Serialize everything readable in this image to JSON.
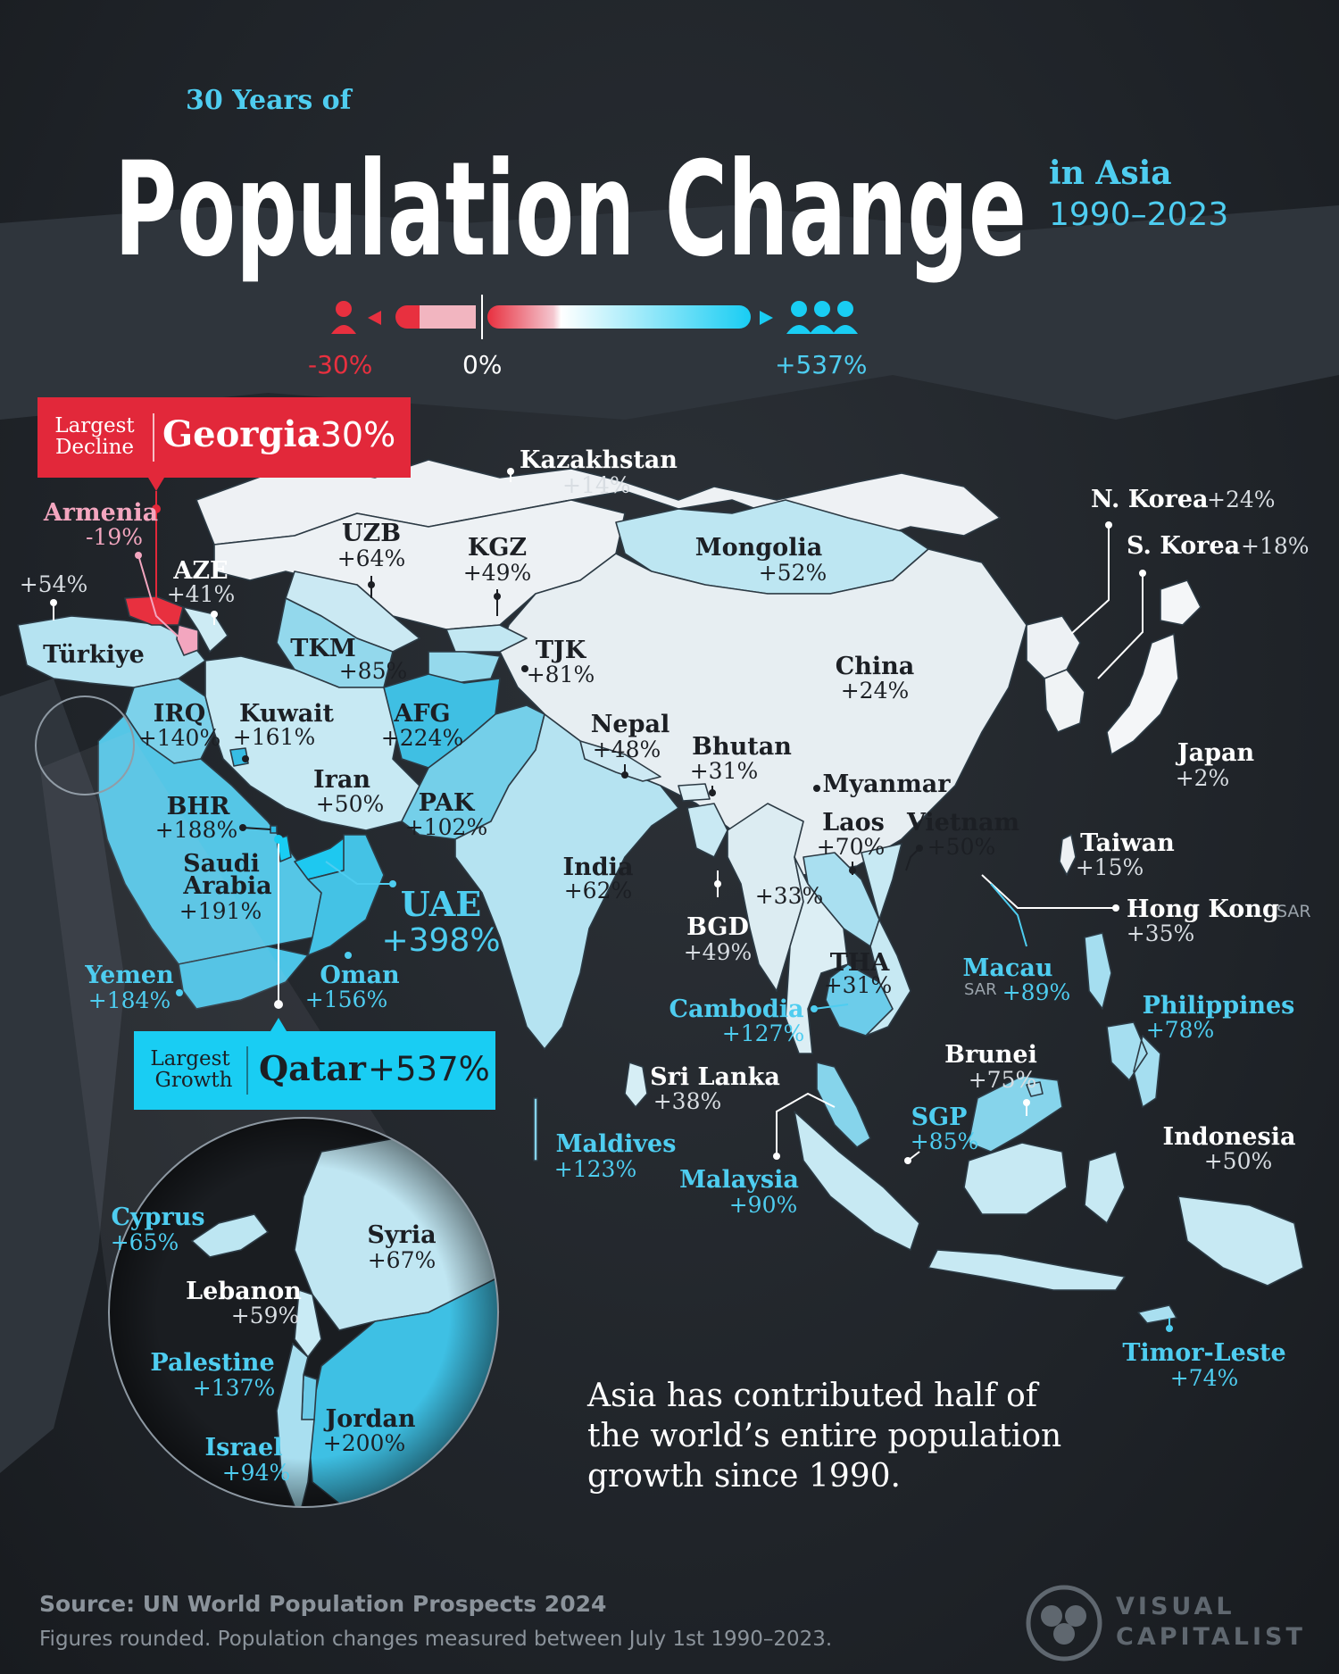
{
  "header": {
    "kicker": "30 Years of",
    "title": "Population Change",
    "region": "in Asia",
    "years": "1990–2023"
  },
  "legend": {
    "min_label": "-30%",
    "mid_label": "0%",
    "max_label": "+537%",
    "colors": {
      "decline": "#e8303f",
      "zero": "#ffffff",
      "growth": "#19cdf3"
    }
  },
  "callouts": {
    "decline": {
      "tag_line1": "Largest",
      "tag_line2": "Decline",
      "country": "Georgia",
      "value": "-30%"
    },
    "growth": {
      "tag_line1": "Largest",
      "tag_line2": "Growth",
      "country": "Qatar",
      "value": "+537%"
    }
  },
  "countries": {
    "kazakhstan": {
      "name": "Kazakhstan",
      "value": "+14%"
    },
    "mongolia": {
      "name": "Mongolia",
      "value": "+52%"
    },
    "uzb": {
      "name": "UZB",
      "value": "+64%"
    },
    "kgz": {
      "name": "KGZ",
      "value": "+49%"
    },
    "armenia": {
      "name": "Armenia",
      "value": "-19%"
    },
    "aze": {
      "name": "AZE",
      "value": "+41%"
    },
    "turkiye": {
      "name": "Türkiye",
      "value": "+54%"
    },
    "tkm": {
      "name": "TKM",
      "value": "+85%"
    },
    "tjk": {
      "name": "TJK",
      "value": "+81%"
    },
    "china": {
      "name": "China",
      "value": "+24%"
    },
    "n_korea": {
      "name": "N. Korea",
      "value": "+24%"
    },
    "s_korea": {
      "name": "S. Korea",
      "value": "+18%"
    },
    "japan": {
      "name": "Japan",
      "value": "+2%"
    },
    "irq": {
      "name": "IRQ",
      "value": "+140%"
    },
    "kuwait": {
      "name": "Kuwait",
      "value": "+161%"
    },
    "afg": {
      "name": "AFG",
      "value": "+224%"
    },
    "nepal": {
      "name": "Nepal",
      "value": "+48%"
    },
    "bhutan": {
      "name": "Bhutan",
      "value": "+31%"
    },
    "myanmar": {
      "name": "Myanmar",
      "value": "+33%"
    },
    "iran": {
      "name": "Iran",
      "value": "+50%"
    },
    "pak": {
      "name": "PAK",
      "value": "+102%"
    },
    "bhr": {
      "name": "BHR",
      "value": "+188%"
    },
    "saudi": {
      "name_line1": "Saudi",
      "name_line2": "Arabia",
      "value": "+191%"
    },
    "uae": {
      "name": "UAE",
      "value": "+398%"
    },
    "india": {
      "name": "India",
      "value": "+62%"
    },
    "bgd": {
      "name": "BGD",
      "value": "+49%"
    },
    "laos": {
      "name": "Laos",
      "value": "+70%"
    },
    "vietnam": {
      "name": "Vietnam",
      "value": "+50%"
    },
    "taiwan": {
      "name": "Taiwan",
      "value": "+15%"
    },
    "hong_kong": {
      "name": "Hong Kong",
      "tag": "SAR",
      "value": "+35%"
    },
    "tha": {
      "name": "THA",
      "value": "+31%"
    },
    "macau": {
      "name": "Macau",
      "tag": "SAR",
      "value": "+89%"
    },
    "yemen": {
      "name": "Yemen",
      "value": "+184%"
    },
    "oman": {
      "name": "Oman",
      "value": "+156%"
    },
    "cambodia": {
      "name": "Cambodia",
      "value": "+127%"
    },
    "philippines": {
      "name": "Philippines",
      "value": "+78%"
    },
    "brunei": {
      "name": "Brunei",
      "value": "+75%"
    },
    "sri_lanka": {
      "name": "Sri Lanka",
      "value": "+38%"
    },
    "sgp": {
      "name": "SGP",
      "value": "+85%"
    },
    "maldives": {
      "name": "Maldives",
      "value": "+123%"
    },
    "malaysia": {
      "name": "Malaysia",
      "value": "+90%"
    },
    "indonesia": {
      "name": "Indonesia",
      "value": "+50%"
    },
    "timor_leste": {
      "name": "Timor-Leste",
      "value": "+74%"
    }
  },
  "inset": {
    "cyprus": {
      "name": "Cyprus",
      "value": "+65%"
    },
    "syria": {
      "name": "Syria",
      "value": "+67%"
    },
    "lebanon": {
      "name": "Lebanon",
      "value": "+59%"
    },
    "palestine": {
      "name": "Palestine",
      "value": "+137%"
    },
    "jordan": {
      "name": "Jordan",
      "value": "+200%"
    },
    "israel": {
      "name": "Israel",
      "value": "+94%"
    }
  },
  "note": {
    "line1": "Asia has contributed half of",
    "line2": "the world’s entire population",
    "line3": "growth since 1990."
  },
  "footer": {
    "source": "Source: UN World Population Prospects 2024",
    "footnote": "Figures rounded. Population changes measured between July 1st 1990–2023.",
    "brand_line1": "VISUAL",
    "brand_line2": "CAPITALIST"
  }
}
